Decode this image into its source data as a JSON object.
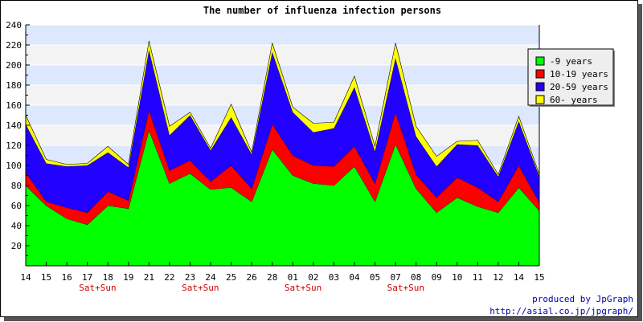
{
  "chart_data": {
    "type": "area",
    "stacked": true,
    "title": "The number of influenza infection persons",
    "xlabel": "",
    "ylabel": "",
    "categories": [
      "14",
      "15",
      "16",
      "17",
      "18",
      "19",
      "21",
      "22",
      "23",
      "24",
      "25",
      "26",
      "28",
      "01",
      "02",
      "03",
      "04",
      "05",
      "07",
      "08",
      "09",
      "10",
      "11",
      "12",
      "14",
      "15"
    ],
    "weekend_labels": [
      {
        "after_category_index": 3,
        "label": "Sat+Sun"
      },
      {
        "after_category_index": 8,
        "label": "Sat+Sun"
      },
      {
        "after_category_index": 13,
        "label": "Sat+Sun"
      },
      {
        "after_category_index": 18,
        "label": "Sat+Sun"
      }
    ],
    "ylim": [
      0,
      240
    ],
    "yticks": [
      20,
      40,
      60,
      80,
      100,
      120,
      140,
      160,
      180,
      200,
      220,
      240
    ],
    "grid": true,
    "legend_position": "right",
    "series": [
      {
        "name": "-9 years",
        "color": "#00ff00",
        "values": [
          80,
          60,
          47,
          41,
          60,
          57,
          135,
          82,
          92,
          76,
          78,
          64,
          116,
          90,
          82,
          80,
          99,
          64,
          121,
          77,
          53,
          68,
          59,
          53,
          78,
          55
        ]
      },
      {
        "name": "10-19 years",
        "color": "#ff0000",
        "values": [
          13,
          4,
          11,
          12,
          14,
          8,
          20,
          13,
          13,
          8,
          22,
          13,
          25,
          20,
          18,
          19,
          20,
          18,
          32,
          14,
          15,
          20,
          19,
          11,
          22,
          8
        ]
      },
      {
        "name": "20-59 years",
        "color": "#2200ff",
        "values": [
          48,
          38,
          41,
          47,
          39,
          33,
          60,
          35,
          45,
          31,
          48,
          34,
          72,
          43,
          33,
          38,
          59,
          32,
          54,
          38,
          31,
          33,
          42,
          25,
          44,
          26
        ]
      },
      {
        "name": "60- years",
        "color": "#ffff00",
        "values": [
          9,
          4,
          2,
          2,
          6,
          3,
          9,
          9,
          3,
          2,
          13,
          2,
          9,
          5,
          9,
          6,
          11,
          5,
          15,
          10,
          10,
          3,
          5,
          2,
          5,
          2
        ]
      }
    ]
  },
  "credits": {
    "line1": "produced by JpGraph",
    "line2": "http://asial.co.jp/jpgraph/"
  }
}
